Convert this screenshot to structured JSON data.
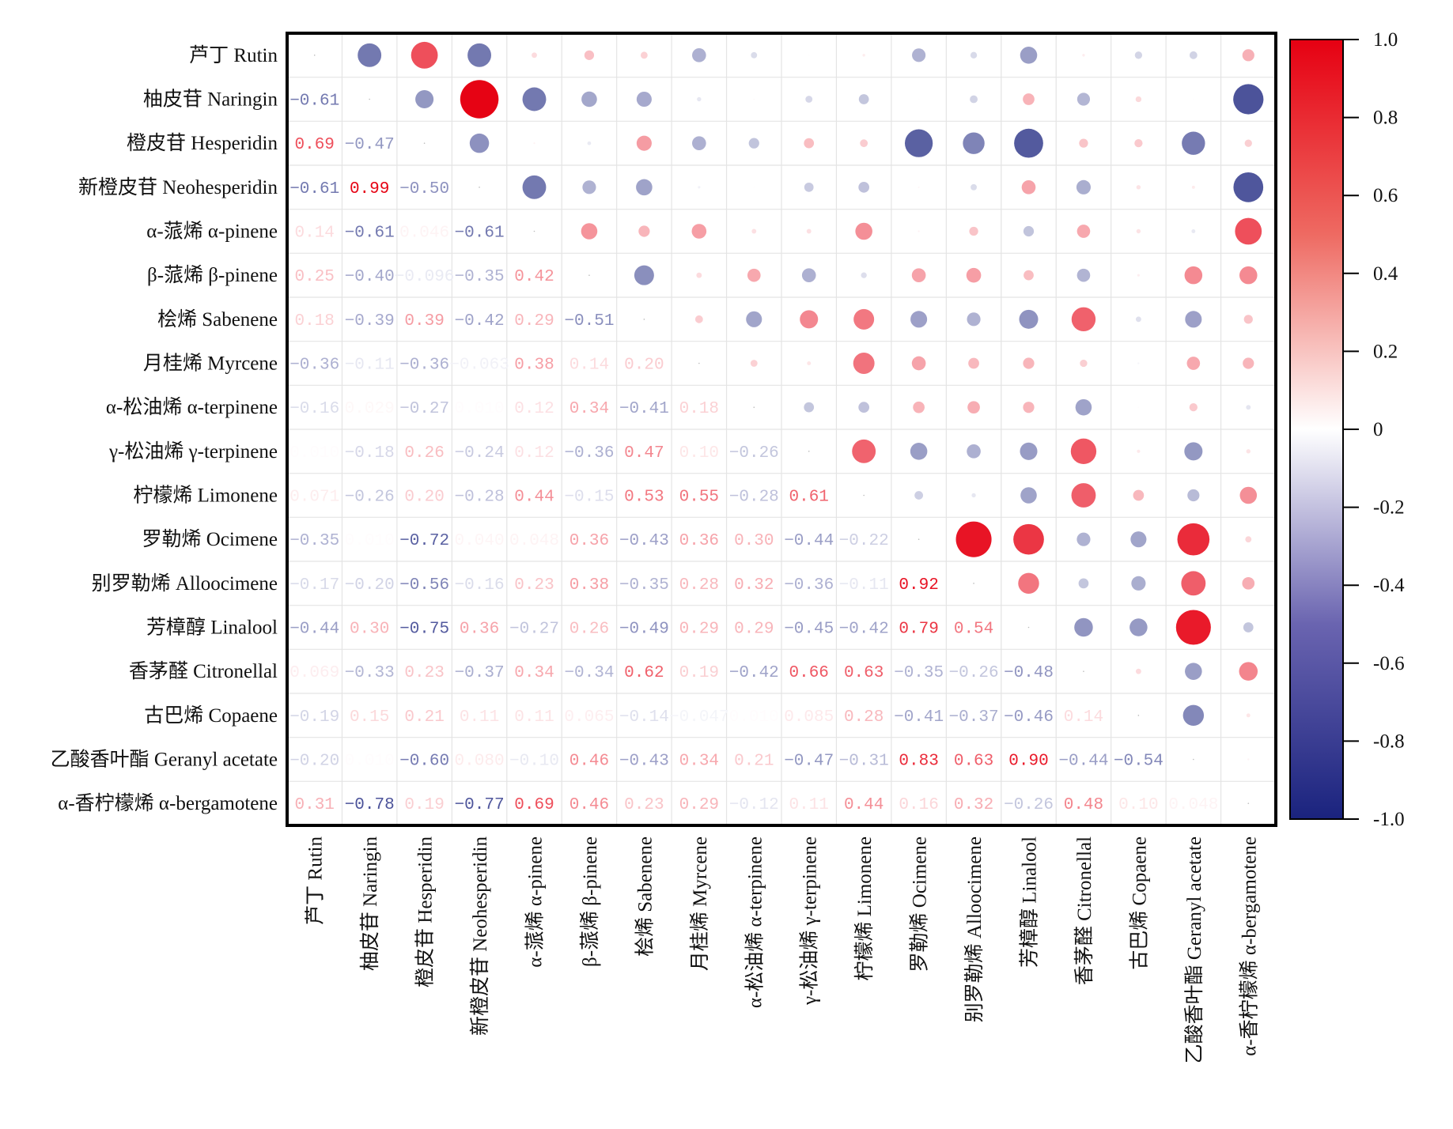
{
  "chart_data": {
    "type": "heatmap",
    "subtype": "correlation-matrix (lower: numeric labels, upper: circles sized & colored by r)",
    "title": "",
    "variables": [
      "芦丁 Rutin",
      "柚皮苷 Naringin",
      "橙皮苷 Hesperidin",
      "新橙皮苷 Neohesperidin",
      "α-蒎烯 α-pinene",
      "β-蒎烯 β-pinene",
      "桧烯 Sabenene",
      "月桂烯 Myrcene",
      "α-松油烯 α-terpinene",
      "γ-松油烯 γ-terpinene",
      "柠檬烯 Limonene",
      "罗勒烯 Ocimene",
      "别罗勒烯 Alloocimene",
      "芳樟醇 Linalool",
      "香茅醛 Citronellal",
      "古巴烯 Copaene",
      "乙酸香叶酯 Geranyl acetate",
      "α-香柠檬烯 α-bergamotene"
    ],
    "lower_triangle": [
      [],
      [
        -0.61
      ],
      [
        0.69,
        -0.47
      ],
      [
        -0.61,
        0.99,
        -0.5
      ],
      [
        0.14,
        -0.61,
        0.046,
        -0.61
      ],
      [
        0.25,
        -0.4,
        -0.096,
        -0.35,
        0.42
      ],
      [
        0.18,
        -0.39,
        0.39,
        -0.42,
        0.29,
        -0.51
      ],
      [
        -0.36,
        -0.11,
        -0.36,
        -0.063,
        0.38,
        0.14,
        0.2
      ],
      [
        -0.16,
        0.029,
        -0.27,
        0.01,
        0.12,
        0.34,
        -0.41,
        0.18
      ],
      [
        0.01,
        -0.18,
        0.26,
        -0.24,
        0.12,
        -0.36,
        0.47,
        0.1,
        -0.26
      ],
      [
        0.071,
        -0.26,
        0.2,
        -0.28,
        0.44,
        -0.15,
        0.53,
        0.55,
        -0.28,
        0.61
      ],
      [
        -0.35,
        0.01,
        -0.72,
        0.04,
        0.048,
        0.36,
        -0.43,
        0.36,
        0.3,
        -0.44,
        -0.22
      ],
      [
        -0.17,
        -0.2,
        -0.56,
        -0.16,
        0.23,
        0.38,
        -0.35,
        0.28,
        0.32,
        -0.36,
        -0.11,
        0.92
      ],
      [
        -0.44,
        0.3,
        -0.75,
        0.36,
        -0.27,
        0.26,
        -0.49,
        0.29,
        0.29,
        -0.45,
        -0.42,
        0.79,
        0.54
      ],
      [
        0.069,
        -0.33,
        0.23,
        -0.37,
        0.34,
        -0.34,
        0.62,
        0.19,
        -0.42,
        0.66,
        0.63,
        -0.35,
        -0.26,
        -0.48
      ],
      [
        -0.19,
        0.15,
        0.21,
        0.11,
        0.11,
        0.065,
        -0.14,
        -0.047,
        0.01,
        0.085,
        0.28,
        -0.41,
        -0.37,
        -0.46,
        0.14
      ],
      [
        -0.2,
        0.01,
        -0.6,
        0.08,
        -0.1,
        0.46,
        -0.43,
        0.34,
        0.21,
        -0.47,
        -0.31,
        0.83,
        0.63,
        0.9,
        -0.44,
        -0.54
      ],
      [
        0.31,
        -0.78,
        0.19,
        -0.77,
        0.69,
        0.46,
        0.23,
        0.29,
        -0.12,
        0.11,
        0.44,
        0.16,
        0.32,
        -0.26,
        0.48,
        0.1,
        0.048
      ]
    ],
    "diagonal": 1.0,
    "value_range": [
      -1.0,
      1.0
    ],
    "colorbar": {
      "ticks": [
        1.0,
        0.8,
        0.6,
        0.4,
        0.2,
        0,
        -0.2,
        -0.4,
        -0.6,
        -0.8,
        -1.0
      ],
      "tick_labels": [
        "1.0",
        "0.8",
        "0.6",
        "0.4",
        "0.2",
        "0",
        "-0.2",
        "-0.4",
        "-0.6",
        "-0.8",
        "-1.0"
      ],
      "placement": "right",
      "colors": {
        "positive": "#e60012",
        "neutral": "#ffffff",
        "negative": "#1a237e"
      }
    },
    "grid": true,
    "xlabel": "",
    "ylabel": ""
  }
}
